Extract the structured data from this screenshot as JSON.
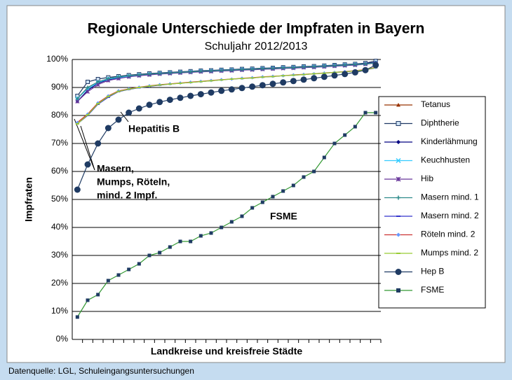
{
  "chart_data": {
    "type": "line",
    "title": "Regionale Unterschiede der Impfraten in Bayern",
    "subtitle": "Schuljahr 2012/2013",
    "ylabel": "Impfraten",
    "xlabel": "Landkreise und kreisfreie Städte",
    "source": "Datenquelle: LGL, Schuleingangsuntersuchungen",
    "annotations": [
      [
        "Hepatitis B"
      ],
      [
        "Masern,",
        "Mumps, Röteln,",
        "mind. 2 Impf."
      ],
      [
        "FSME"
      ]
    ],
    "categories": [
      null,
      null,
      null,
      null,
      null,
      null,
      null,
      null,
      null,
      null,
      null,
      null,
      null,
      null,
      null,
      null,
      null,
      null,
      null,
      null,
      null,
      null,
      null,
      null,
      null,
      null,
      null,
      null,
      null,
      null
    ],
    "ylim": [
      0,
      100
    ],
    "yticks": [
      {
        "value": 0,
        "label": "0%"
      },
      {
        "value": 10,
        "label": "10%"
      },
      {
        "value": 20,
        "label": "20%"
      },
      {
        "value": 30,
        "label": "30%"
      },
      {
        "value": 40,
        "label": "40%"
      },
      {
        "value": 50,
        "label": "50%"
      },
      {
        "value": 60,
        "label": "60%"
      },
      {
        "value": 70,
        "label": "70%"
      },
      {
        "value": 80,
        "label": "80%"
      },
      {
        "value": 90,
        "label": "90%"
      },
      {
        "value": 100,
        "label": "100%"
      }
    ],
    "grid": true,
    "legend": "right",
    "series": [
      {
        "name": "Tetanus",
        "color": "#993300",
        "values": [
          86,
          90,
          92,
          93,
          93.5,
          94,
          94.3,
          94.6,
          94.9,
          95.1,
          95.3,
          95.5,
          95.7,
          95.9,
          96,
          96.2,
          96.4,
          96.5,
          96.7,
          96.8,
          97,
          97.1,
          97.3,
          97.4,
          97.6,
          97.8,
          98,
          98.2,
          98.5,
          99
        ]
      },
      {
        "name": "Diphtherie",
        "color": "#1f3864",
        "values": [
          87,
          92,
          93,
          93.6,
          94,
          94.4,
          94.7,
          95,
          95.2,
          95.4,
          95.6,
          95.8,
          96,
          96.1,
          96.3,
          96.4,
          96.6,
          96.7,
          96.9,
          97,
          97.2,
          97.3,
          97.5,
          97.6,
          97.8,
          98,
          98.2,
          98.4,
          98.7,
          99.5
        ]
      },
      {
        "name": "Kinderlähmung",
        "color": "#000080",
        "values": [
          85,
          89,
          91.5,
          92.8,
          93.4,
          93.9,
          94.3,
          94.6,
          94.9,
          95.1,
          95.3,
          95.5,
          95.7,
          95.8,
          96,
          96.2,
          96.3,
          96.5,
          96.6,
          96.8,
          96.9,
          97.1,
          97.2,
          97.4,
          97.6,
          97.8,
          98,
          98.2,
          98.5,
          99
        ]
      },
      {
        "name": "Keuchhusten",
        "color": "#33ccff",
        "values": [
          86,
          89.5,
          91.8,
          93,
          93.6,
          94,
          94.4,
          94.7,
          95,
          95.2,
          95.4,
          95.6,
          95.8,
          95.9,
          96.1,
          96.2,
          96.4,
          96.5,
          96.7,
          96.8,
          97,
          97.1,
          97.3,
          97.4,
          97.6,
          97.8,
          98,
          98.2,
          98.4,
          98.8
        ]
      },
      {
        "name": "Hib",
        "color": "#663399",
        "values": [
          85,
          88.5,
          91,
          92.5,
          93.2,
          93.8,
          94.2,
          94.5,
          94.8,
          95,
          95.2,
          95.4,
          95.6,
          95.7,
          95.9,
          96,
          96.2,
          96.3,
          96.5,
          96.6,
          96.8,
          96.9,
          97.1,
          97.2,
          97.4,
          97.6,
          97.8,
          98,
          98.3,
          98.7
        ]
      },
      {
        "name": "Masern mind. 1",
        "color": "#2e8b8b",
        "values": [
          86,
          90,
          92,
          93.2,
          93.8,
          94.2,
          94.5,
          94.8,
          95,
          95.2,
          95.4,
          95.6,
          95.8,
          95.9,
          96.1,
          96.2,
          96.4,
          96.5,
          96.7,
          96.8,
          97,
          97.1,
          97.3,
          97.4,
          97.6,
          97.8,
          98,
          98.2,
          98.4,
          98.8
        ]
      },
      {
        "name": "Masern mind. 2",
        "color": "#3333cc",
        "values": [
          77,
          80,
          84,
          86.5,
          88.5,
          89.3,
          89.9,
          90.4,
          90.8,
          91.2,
          91.5,
          91.8,
          92.1,
          92.4,
          92.7,
          93,
          93.2,
          93.4,
          93.7,
          93.9,
          94.2,
          94.4,
          94.6,
          94.9,
          95.1,
          95.4,
          95.6,
          95.9,
          96.3,
          97
        ]
      },
      {
        "name": "Röteln mind. 2",
        "color": "#6699ff",
        "values": [
          77.5,
          80.5,
          84.5,
          87,
          88.8,
          89.5,
          90.1,
          90.6,
          91,
          91.3,
          91.6,
          91.9,
          92.2,
          92.5,
          92.8,
          93,
          93.3,
          93.5,
          93.8,
          94,
          94.2,
          94.5,
          94.7,
          94.9,
          95.2,
          95.4,
          95.7,
          96,
          96.4,
          97.2
        ]
      },
      {
        "name": "Mumps mind. 2",
        "color": "#99cc33",
        "values": [
          77,
          80.2,
          84.2,
          86.8,
          88.6,
          89.4,
          90,
          90.5,
          90.9,
          91.2,
          91.5,
          91.8,
          92.1,
          92.4,
          92.7,
          93,
          93.2,
          93.4,
          93.7,
          93.9,
          94.2,
          94.4,
          94.6,
          94.9,
          95.1,
          95.4,
          95.6,
          95.9,
          96.3,
          97.1
        ]
      },
      {
        "name": "Hep B",
        "color": "#1f3b63",
        "values": [
          53.5,
          62.5,
          70,
          75.5,
          78.5,
          81,
          82.5,
          83.8,
          84.8,
          85.6,
          86.3,
          87,
          87.6,
          88.2,
          88.8,
          89.3,
          89.8,
          90.3,
          90.8,
          91.3,
          91.8,
          92.3,
          92.8,
          93.3,
          93.8,
          94.3,
          94.8,
          95.4,
          96.2,
          98
        ]
      },
      {
        "name": "FSME",
        "color": "#2e7d32",
        "values": [
          8,
          14,
          16,
          21,
          23,
          25,
          27,
          30,
          31,
          33,
          35,
          35,
          37,
          38,
          40,
          42,
          44,
          47,
          49,
          51,
          53,
          55,
          58,
          60,
          65,
          70,
          73,
          76,
          81,
          81
        ]
      }
    ]
  }
}
